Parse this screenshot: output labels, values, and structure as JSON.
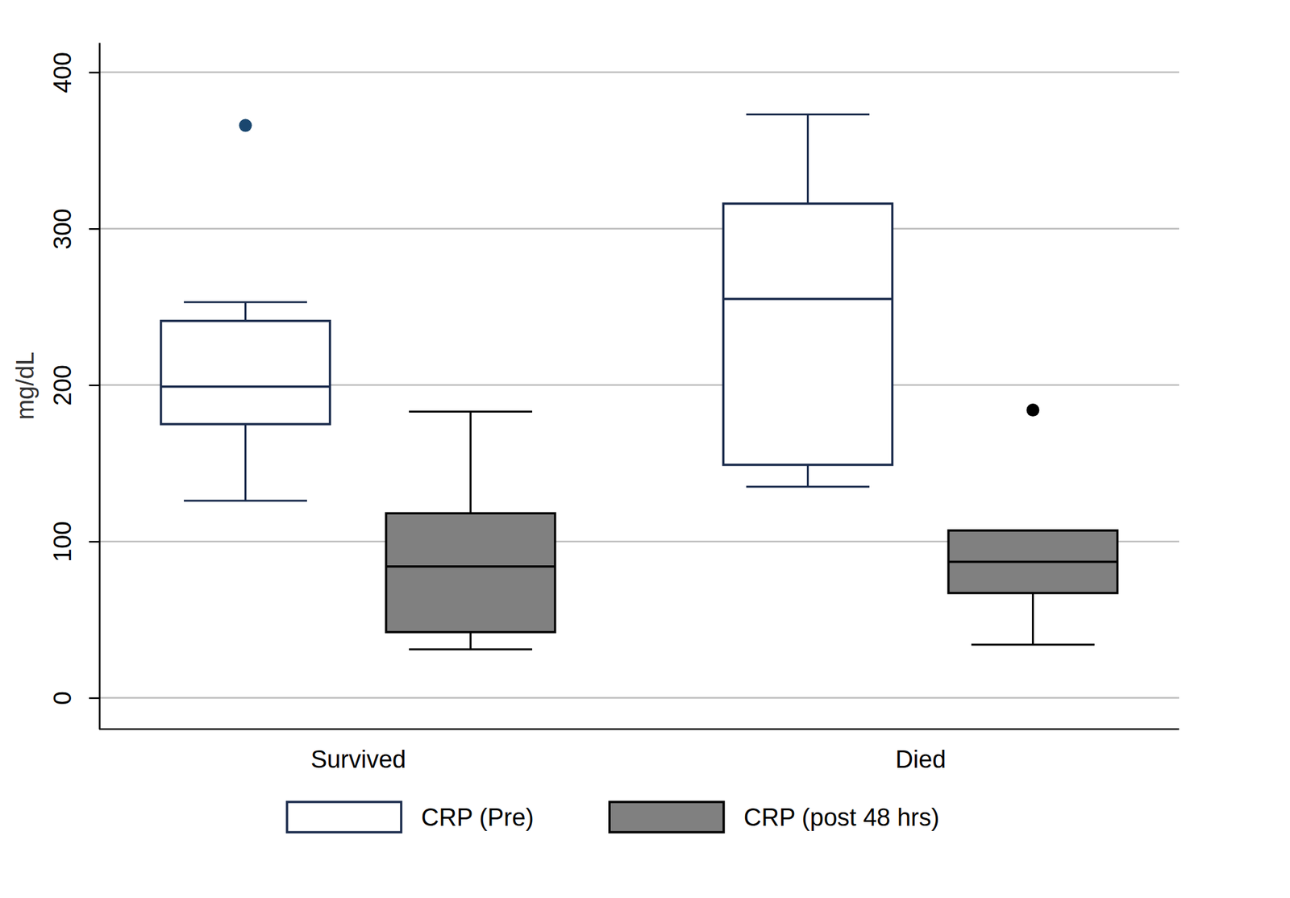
{
  "chart_data": {
    "type": "box",
    "y_label": "mg/dL",
    "categories": [
      "Survived",
      "Died"
    ],
    "series": [
      {
        "name": "CRP (Pre)",
        "color": "#ffffff",
        "min": [
          126,
          135
        ],
        "q1": [
          175,
          149
        ],
        "median": [
          199,
          255
        ],
        "q3": [
          241,
          316
        ],
        "max": [
          253,
          373
        ],
        "outliers": [
          [
            366
          ],
          []
        ]
      },
      {
        "name": "CRP (post 48 hrs)",
        "color": "#808080",
        "min": [
          31,
          34
        ],
        "q1": [
          42,
          67
        ],
        "median": [
          84,
          87
        ],
        "q3": [
          118,
          107
        ],
        "max": [
          183,
          107
        ],
        "outliers": [
          [],
          [
            184
          ]
        ]
      }
    ],
    "ylim": [
      -20,
      419
    ],
    "yticks": [
      0,
      100,
      200,
      300,
      400
    ],
    "grid": true,
    "legend": "bottom"
  }
}
